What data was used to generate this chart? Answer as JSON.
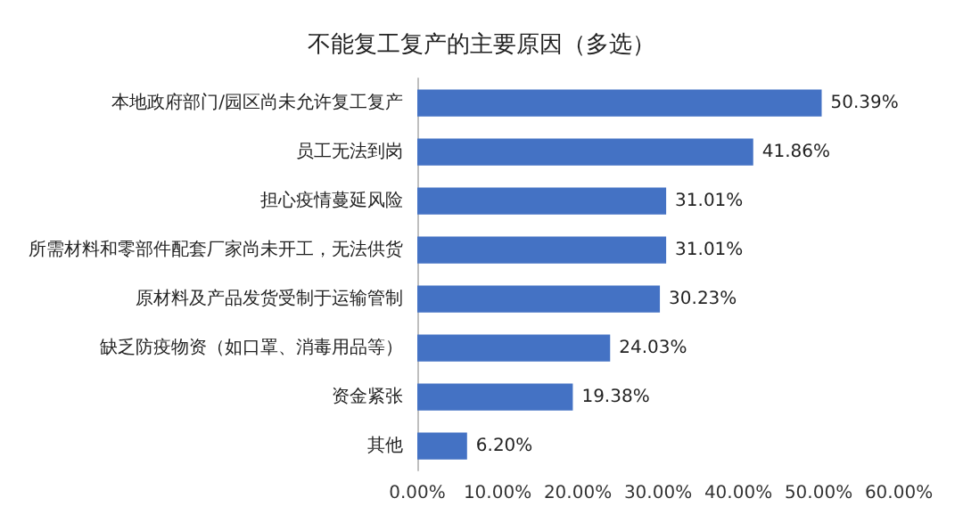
{
  "chart_data": {
    "type": "bar",
    "orientation": "horizontal",
    "title": "不能复工复产的主要原因（多选）",
    "categories": [
      "本地政府部门/园区尚未允许复工复产",
      "员工无法到岗",
      "担心疫情蔓延风险",
      "所需材料和零部件配套厂家尚未开工，无法供货",
      "原材料及产品发货受制于运输管制",
      "缺乏防疫物资（如口罩、消毒用品等）",
      "资金紧张",
      "其他"
    ],
    "values": [
      50.39,
      41.86,
      31.01,
      31.01,
      30.23,
      24.03,
      19.38,
      6.2
    ],
    "value_labels": [
      "50.39%",
      "41.86%",
      "31.01%",
      "31.01%",
      "30.23%",
      "24.03%",
      "19.38%",
      "6.20%"
    ],
    "color": "#4472c4",
    "xlim": [
      0,
      60
    ],
    "xticks": [
      {
        "value": 0,
        "label": "0.00%"
      },
      {
        "value": 10,
        "label": "10.00%"
      },
      {
        "value": 20,
        "label": "20.00%"
      },
      {
        "value": 30,
        "label": "30.00%"
      },
      {
        "value": 40,
        "label": "40.00%"
      },
      {
        "value": 50,
        "label": "50.00%"
      },
      {
        "value": 60,
        "label": "60.00%"
      }
    ],
    "grid": false
  }
}
